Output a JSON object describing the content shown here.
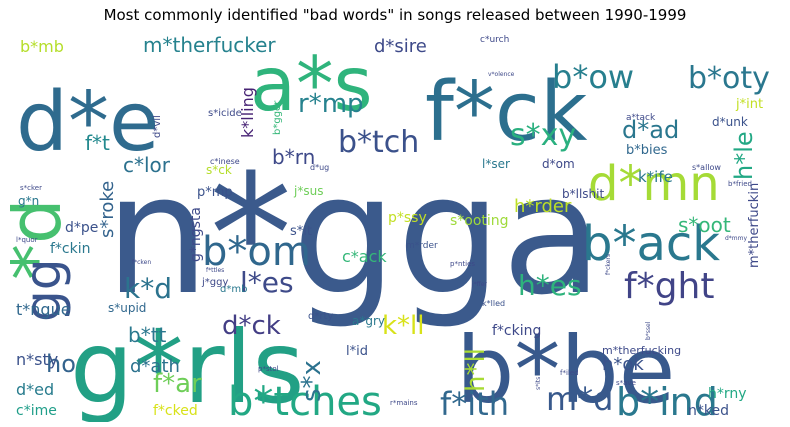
{
  "chart_data": {
    "type": "wordcloud",
    "title": "Most commonly identified \"bad words\" in songs released between 1990-1999",
    "words": [
      {
        "text": "n*gga",
        "weight": 100,
        "color": "#3b5a8c"
      },
      {
        "text": "g*rls",
        "weight": 78,
        "color": "#22a085"
      },
      {
        "text": "b*be",
        "weight": 72,
        "color": "#38598c"
      },
      {
        "text": "f*ck",
        "weight": 68,
        "color": "#2c6f8e"
      },
      {
        "text": "d*e",
        "weight": 64,
        "color": "#2f6b8e"
      },
      {
        "text": "a*s",
        "weight": 60,
        "color": "#2fb47c"
      },
      {
        "text": "*d",
        "weight": 55,
        "color": "#46c06f"
      },
      {
        "text": "gg",
        "weight": 42,
        "color": "#3a548c"
      },
      {
        "text": "d*mn",
        "weight": 38,
        "color": "#a5db36"
      },
      {
        "text": "b*ack",
        "weight": 36,
        "color": "#2a788e"
      },
      {
        "text": "b*tches",
        "weight": 30,
        "color": "#22a884"
      },
      {
        "text": "b*om",
        "weight": 30,
        "color": "#30678d"
      },
      {
        "text": "b*ow",
        "weight": 28,
        "color": "#277f8e"
      },
      {
        "text": "b*oty",
        "weight": 26,
        "color": "#2a778e"
      },
      {
        "text": "f*ght",
        "weight": 28,
        "color": "#414487"
      },
      {
        "text": "b*ind",
        "weight": 28,
        "color": "#2a788e"
      },
      {
        "text": "b*tch",
        "weight": 26,
        "color": "#3b518b"
      },
      {
        "text": "s*xy",
        "weight": 24,
        "color": "#2ab07f"
      },
      {
        "text": "f*ith",
        "weight": 24,
        "color": "#31688e"
      },
      {
        "text": "m*d",
        "weight": 24,
        "color": "#38598c"
      },
      {
        "text": "h*es",
        "weight": 22,
        "color": "#2eb37c"
      },
      {
        "text": "r*mp",
        "weight": 22,
        "color": "#26828e"
      },
      {
        "text": "l*es",
        "weight": 22,
        "color": "#3e4a89"
      },
      {
        "text": "k*d",
        "weight": 22,
        "color": "#2c738e"
      },
      {
        "text": "d*ck",
        "weight": 20,
        "color": "#433e85"
      },
      {
        "text": "d*ad",
        "weight": 18,
        "color": "#2a778e"
      },
      {
        "text": "h*ll",
        "weight": 20,
        "color": "#a8db34"
      },
      {
        "text": "s*x",
        "weight": 20,
        "color": "#2c728e"
      },
      {
        "text": "m*therfucker",
        "weight": 16,
        "color": "#26828e"
      },
      {
        "text": "f*ar",
        "weight": 18,
        "color": "#6ece58"
      },
      {
        "text": "ho",
        "weight": 18,
        "color": "#33638d"
      },
      {
        "text": "k*ll",
        "weight": 18,
        "color": "#d8e219"
      },
      {
        "text": "h*le",
        "weight": 16,
        "color": "#22a884"
      },
      {
        "text": "s*oot",
        "weight": 14,
        "color": "#35b779"
      },
      {
        "text": "b*rn",
        "weight": 14,
        "color": "#3e4989"
      },
      {
        "text": "c*lor",
        "weight": 14,
        "color": "#2c718e"
      },
      {
        "text": "h*rder",
        "weight": 14,
        "color": "#bddf26"
      },
      {
        "text": "d*sire",
        "weight": 14,
        "color": "#3e4a89"
      },
      {
        "text": "f*t",
        "weight": 14,
        "color": "#23898e"
      },
      {
        "text": "b*mb",
        "weight": 12,
        "color": "#b5de2b"
      },
      {
        "text": "k*lling",
        "weight": 12,
        "color": "#482475"
      },
      {
        "text": "s*roke",
        "weight": 14,
        "color": "#33638d"
      },
      {
        "text": "b*tt",
        "weight": 14,
        "color": "#2a788e"
      },
      {
        "text": "d*ath",
        "weight": 14,
        "color": "#2c728e"
      },
      {
        "text": "h*ok",
        "weight": 14,
        "color": "#3b528b"
      },
      {
        "text": "t*ngue",
        "weight": 12,
        "color": "#31688e"
      },
      {
        "text": "n*sty",
        "weight": 12,
        "color": "#3b528b"
      },
      {
        "text": "d*ed",
        "weight": 12,
        "color": "#287c8e"
      },
      {
        "text": "c*ime",
        "weight": 10,
        "color": "#1f9e89"
      },
      {
        "text": "f*cked",
        "weight": 10,
        "color": "#d8e219"
      },
      {
        "text": "n*ked",
        "weight": 10,
        "color": "#3b528b"
      },
      {
        "text": "h*rny",
        "weight": 10,
        "color": "#22a884"
      },
      {
        "text": "f*cking",
        "weight": 10,
        "color": "#3e4989"
      },
      {
        "text": "c*ack",
        "weight": 10,
        "color": "#35b779"
      },
      {
        "text": "p*ssy",
        "weight": 10,
        "color": "#c2df23"
      },
      {
        "text": "s*ooting",
        "weight": 10,
        "color": "#9fda3a"
      },
      {
        "text": "g*ngsta",
        "weight": 10,
        "color": "#3e4a89"
      },
      {
        "text": "f*ckin",
        "weight": 10,
        "color": "#2a788e"
      },
      {
        "text": "d*pe",
        "weight": 9,
        "color": "#3b528b"
      },
      {
        "text": "d*mb",
        "weight": 8,
        "color": "#2a788e"
      },
      {
        "text": "m*therfuckin",
        "weight": 9,
        "color": "#3e4989"
      },
      {
        "text": "k*ife",
        "weight": 10,
        "color": "#2a788e"
      },
      {
        "text": "b*bies",
        "weight": 10,
        "color": "#31688e"
      },
      {
        "text": "d*om",
        "weight": 9,
        "color": "#3e4989"
      },
      {
        "text": "d*unk",
        "weight": 8,
        "color": "#3b528b"
      },
      {
        "text": "j*int",
        "weight": 9,
        "color": "#c2df23"
      },
      {
        "text": "l*ser",
        "weight": 8,
        "color": "#2a788e"
      },
      {
        "text": "b*llshit",
        "weight": 8,
        "color": "#3e4a89"
      },
      {
        "text": "m*therfucking",
        "weight": 7,
        "color": "#3e4a89"
      },
      {
        "text": "l*id",
        "weight": 9,
        "color": "#3b528b"
      },
      {
        "text": "a*gry",
        "weight": 8,
        "color": "#2a788e"
      },
      {
        "text": "d*rty",
        "weight": 7,
        "color": "#3b528b"
      },
      {
        "text": "s*upid",
        "weight": 8,
        "color": "#31688e"
      },
      {
        "text": "j*ggy",
        "weight": 7,
        "color": "#3e4989"
      },
      {
        "text": "p*mp",
        "weight": 8,
        "color": "#3b528b"
      },
      {
        "text": "s*it",
        "weight": 8,
        "color": "#3b528b"
      },
      {
        "text": "j*sus",
        "weight": 8,
        "color": "#6ece58"
      },
      {
        "text": "s*ck",
        "weight": 8,
        "color": "#b5de2b"
      },
      {
        "text": "g*n",
        "weight": 7,
        "color": "#2a788e"
      },
      {
        "text": "b*gger",
        "weight": 6,
        "color": "#35b779"
      },
      {
        "text": "s*icide",
        "weight": 6,
        "color": "#3e4a89"
      },
      {
        "text": "c*urch",
        "weight": 6,
        "color": "#3e4989"
      },
      {
        "text": "a*tack",
        "weight": 6,
        "color": "#3e4989"
      },
      {
        "text": "d*vil",
        "weight": 6,
        "color": "#3e4989"
      },
      {
        "text": "c*inese",
        "weight": 5,
        "color": "#3e4989"
      },
      {
        "text": "d*ug",
        "weight": 5,
        "color": "#3e4989"
      },
      {
        "text": "m*rder",
        "weight": 6,
        "color": "#3b528b"
      },
      {
        "text": "k*lled",
        "weight": 5,
        "color": "#3b528b"
      },
      {
        "text": "p*stol",
        "weight": 5,
        "color": "#3e4989"
      },
      {
        "text": "r*mains",
        "weight": 5,
        "color": "#3e4989"
      },
      {
        "text": "f*iled",
        "weight": 5,
        "color": "#3e4989"
      },
      {
        "text": "s*ave",
        "weight": 5,
        "color": "#3e4989"
      },
      {
        "text": "s*allow",
        "weight": 5,
        "color": "#3e4989"
      },
      {
        "text": "b*fried",
        "weight": 5,
        "color": "#3e4989"
      },
      {
        "text": "s*cker",
        "weight": 5,
        "color": "#3e4989"
      },
      {
        "text": "l*quor",
        "weight": 5,
        "color": "#3e4989"
      },
      {
        "text": "p*nties",
        "weight": 5,
        "color": "#3e4989"
      },
      {
        "text": "v*olence",
        "weight": 4,
        "color": "#3e4989"
      },
      {
        "text": "d*mmy",
        "weight": 4,
        "color": "#3e4989"
      },
      {
        "text": "f*ckers",
        "weight": 4,
        "color": "#3e4989"
      },
      {
        "text": "f*cken",
        "weight": 4,
        "color": "#3e4989"
      },
      {
        "text": "f*ttles",
        "weight": 4,
        "color": "#3e4989"
      },
      {
        "text": "j*ffer",
        "weight": 4,
        "color": "#3e4989"
      },
      {
        "text": "s*its",
        "weight": 4,
        "color": "#3e4989"
      },
      {
        "text": "b*ssel",
        "weight": 4,
        "color": "#3e4989"
      }
    ]
  }
}
